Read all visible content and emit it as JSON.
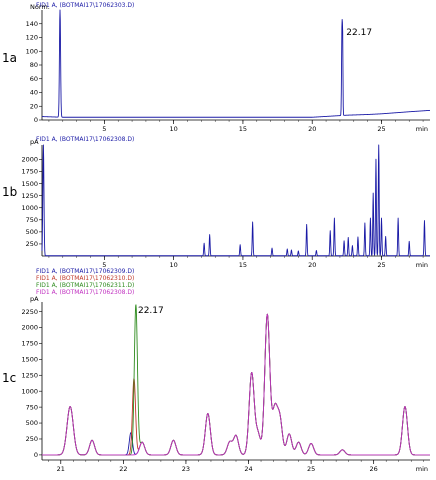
{
  "colors": {
    "blue": "#1a1aa6",
    "red": "#c0392b",
    "green": "#2e8b1e",
    "magenta": "#c030c0",
    "axis": "#000000"
  },
  "chart_data": [
    {
      "type": "line",
      "panel_label": "1a",
      "legend": [
        {
          "text": "FID1 A, (BOTMAI17\\17062303.D)",
          "color": "#1a1aa6"
        }
      ],
      "ylabel": "Norm.",
      "xunit": "min",
      "xlim": [
        0.5,
        28.5
      ],
      "ylim": [
        0,
        160
      ],
      "xticks": [
        5,
        10,
        15,
        20,
        25
      ],
      "yticks": [
        0,
        20,
        40,
        60,
        80,
        100,
        120,
        140
      ],
      "annotations": [
        {
          "text": "22.17",
          "x": 22.17,
          "y": 135
        }
      ],
      "series": [
        {
          "color": "#1a1aa6",
          "baseline": [
            [
              0.5,
              5
            ],
            [
              2,
              4
            ],
            [
              20,
              4
            ],
            [
              22.5,
              7
            ],
            [
              24,
              8
            ],
            [
              25,
              9
            ],
            [
              27,
              12
            ],
            [
              28.5,
              14
            ]
          ],
          "peaks": [
            [
              1.8,
              160,
              0.04
            ],
            [
              22.15,
              135,
              0.03
            ],
            [
              22.2,
              88,
              0.02
            ]
          ]
        }
      ]
    },
    {
      "type": "line",
      "panel_label": "1b",
      "legend": [
        {
          "text": "FID1 A, (BOTMAI17\\17062308.D)",
          "color": "#1a1aa6"
        }
      ],
      "ylabel": "pA",
      "xunit": "min",
      "xlim": [
        0.5,
        28.5
      ],
      "ylim": [
        0,
        2300
      ],
      "xticks": [
        5,
        10,
        15,
        20,
        25
      ],
      "yticks": [
        250,
        500,
        750,
        1000,
        1250,
        1500,
        1750,
        2000
      ],
      "series": [
        {
          "color": "#1a1aa6",
          "baseline": [
            [
              0.5,
              5
            ],
            [
              28.5,
              5
            ]
          ],
          "peaks": [
            [
              0.6,
              2300,
              0.04
            ],
            [
              12.2,
              260,
              0.03
            ],
            [
              12.6,
              440,
              0.03
            ],
            [
              14.8,
              230,
              0.03
            ],
            [
              15.7,
              700,
              0.03
            ],
            [
              17.1,
              160,
              0.03
            ],
            [
              18.2,
              140,
              0.03
            ],
            [
              18.5,
              120,
              0.03
            ],
            [
              19.0,
              100,
              0.03
            ],
            [
              19.6,
              650,
              0.03
            ],
            [
              20.3,
              110,
              0.03
            ],
            [
              21.3,
              520,
              0.03
            ],
            [
              21.6,
              780,
              0.03
            ],
            [
              22.3,
              310,
              0.03
            ],
            [
              22.6,
              380,
              0.03
            ],
            [
              22.9,
              210,
              0.03
            ],
            [
              23.3,
              390,
              0.03
            ],
            [
              23.8,
              680,
              0.03
            ],
            [
              24.2,
              780,
              0.03
            ],
            [
              24.4,
              1300,
              0.03
            ],
            [
              24.6,
              2000,
              0.03
            ],
            [
              24.8,
              2390,
              0.03
            ],
            [
              25.0,
              780,
              0.03
            ],
            [
              25.3,
              400,
              0.03
            ],
            [
              26.2,
              780,
              0.03
            ],
            [
              27.0,
              300,
              0.03
            ],
            [
              28.1,
              730,
              0.03
            ]
          ]
        }
      ]
    },
    {
      "type": "line",
      "panel_label": "1c",
      "legend": [
        {
          "text": "FID1 A, (BOTMAI17\\17062309.D)",
          "color": "#1a1aa6"
        },
        {
          "text": "FID1 A, (BOTMAI17\\17062310.D)",
          "color": "#c0392b"
        },
        {
          "text": "FID1 A, (BOTMAI17\\17062311.D)",
          "color": "#2e8b1e"
        },
        {
          "text": "FID1 A, (BOTMAI17\\17062308.D)",
          "color": "#c030c0"
        }
      ],
      "ylabel": "pA",
      "xunit": "min",
      "xlim": [
        20.7,
        26.9
      ],
      "ylim": [
        -80,
        2400
      ],
      "xticks": [
        21,
        22,
        23,
        24,
        25,
        26
      ],
      "yticks": [
        0,
        250,
        500,
        750,
        1000,
        1250,
        1500,
        1750,
        2000,
        2250
      ],
      "annotations": [
        {
          "text": "22.17",
          "x": 22.17,
          "y": 2350
        }
      ],
      "shared_peaks": [
        [
          21.15,
          760,
          0.05
        ],
        [
          21.5,
          230,
          0.04
        ],
        [
          22.3,
          200,
          0.04
        ],
        [
          22.8,
          230,
          0.04
        ],
        [
          23.35,
          650,
          0.04
        ],
        [
          23.7,
          200,
          0.04
        ],
        [
          23.8,
          300,
          0.04
        ],
        [
          24.05,
          1280,
          0.04
        ],
        [
          24.15,
          330,
          0.04
        ],
        [
          24.3,
          2200,
          0.04
        ],
        [
          24.42,
          700,
          0.04
        ],
        [
          24.5,
          560,
          0.04
        ],
        [
          24.65,
          330,
          0.04
        ],
        [
          24.8,
          200,
          0.04
        ],
        [
          25.0,
          180,
          0.04
        ],
        [
          25.5,
          80,
          0.04
        ],
        [
          26.5,
          760,
          0.04
        ]
      ],
      "series": [
        {
          "file": "17062309.D",
          "color": "#1a1aa6",
          "spike": [
            [
              22.12,
              350,
              0.025
            ]
          ]
        },
        {
          "file": "17062310.D",
          "color": "#c0392b",
          "spike": [
            [
              22.17,
              1200,
              0.025
            ]
          ]
        },
        {
          "file": "17062311.D",
          "color": "#2e8b1e",
          "spike": [
            [
              22.2,
              2350,
              0.025
            ]
          ]
        },
        {
          "file": "17062308.D",
          "color": "#c030c0",
          "spike": []
        }
      ]
    }
  ]
}
